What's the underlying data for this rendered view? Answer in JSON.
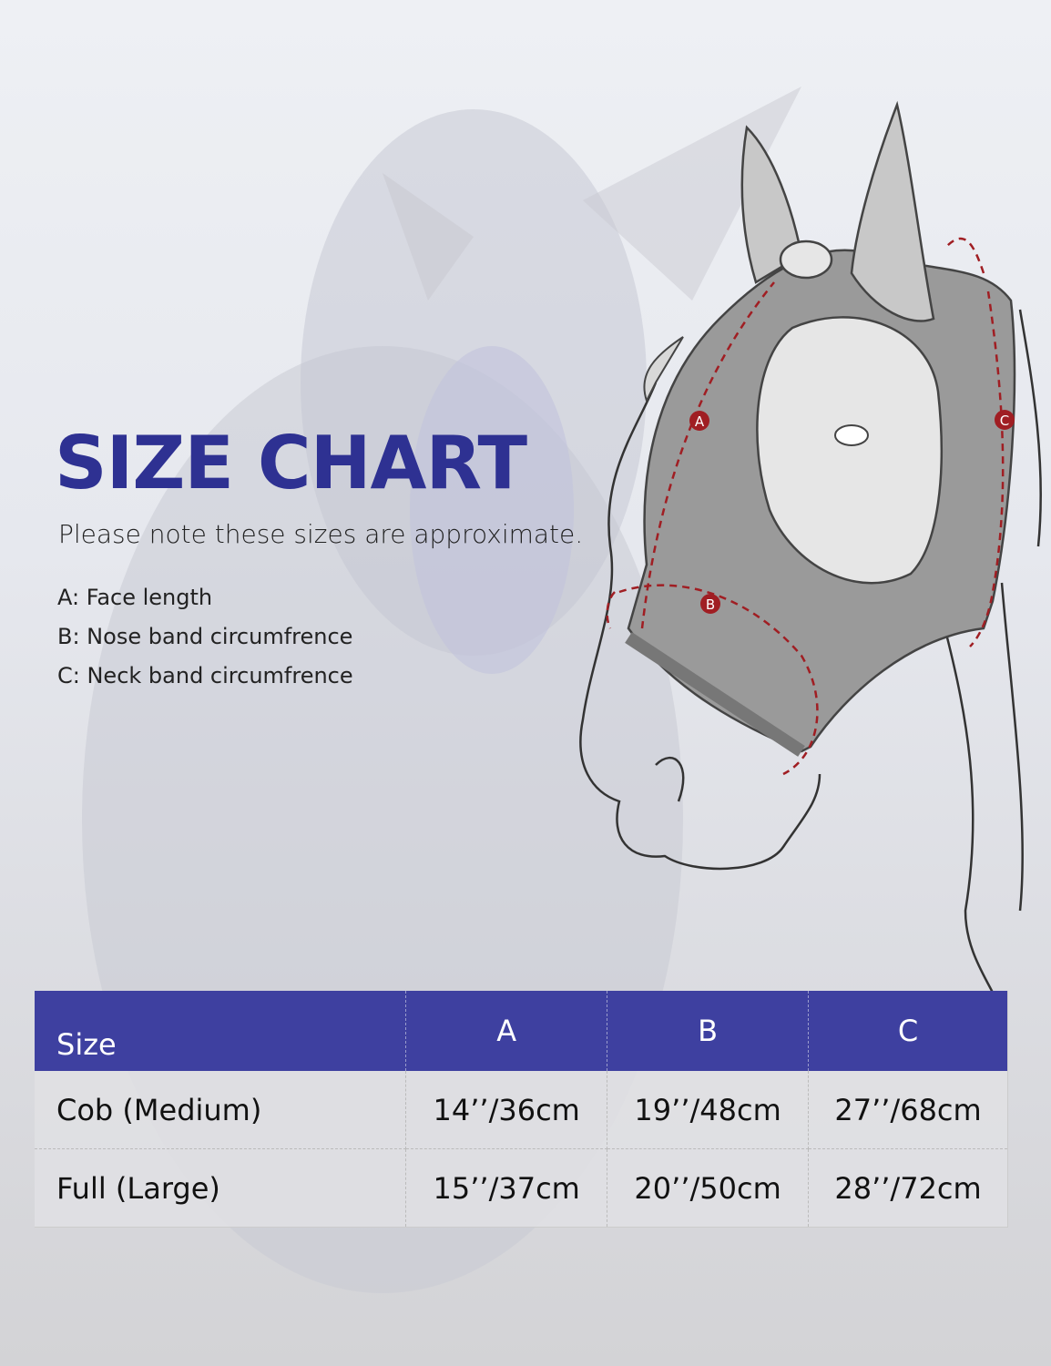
{
  "title": "SIZE CHART",
  "subtitle": "Please note these sizes are approximate.",
  "legend": [
    "A: Face length",
    "B: Nose band circumfrence",
    "C: Neck band circumfrence"
  ],
  "diagram": {
    "markers": [
      "A",
      "B",
      "C"
    ],
    "mask_color": "#9a9a9a",
    "arrow_color": "#a01e23"
  },
  "table": {
    "header_color": "#3e40a0",
    "headers": [
      "Size",
      "A",
      "B",
      "C"
    ],
    "rows": [
      [
        "Cob (Medium)",
        "14’’/36cm",
        "19’’/48cm",
        "27’’/68cm"
      ],
      [
        "Full (Large)",
        "15’’/37cm",
        "20’’/50cm",
        "28’’/72cm"
      ]
    ]
  }
}
